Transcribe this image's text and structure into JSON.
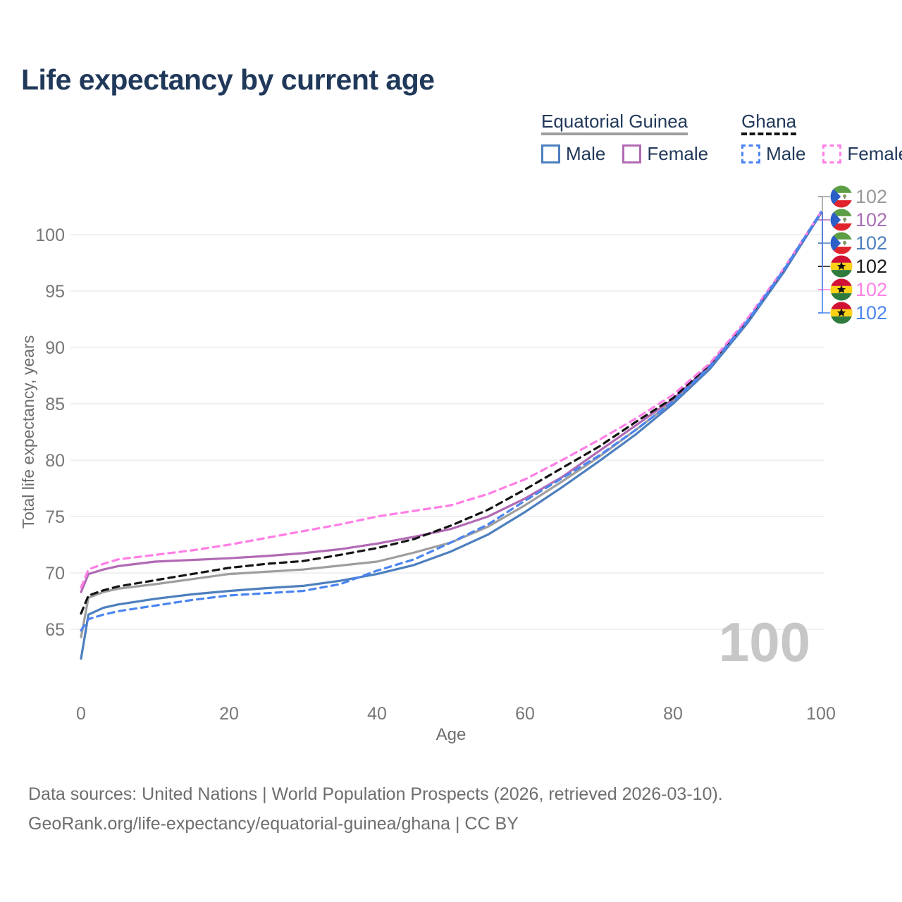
{
  "title": "Life expectancy by current age",
  "legend": {
    "groups": [
      {
        "name": "Equatorial Guinea",
        "series_id": "eq-total",
        "items": [
          {
            "label": "Male",
            "series_id": "eq-male"
          },
          {
            "label": "Female",
            "series_id": "eq-female"
          }
        ]
      },
      {
        "name": "Ghana",
        "series_id": "gh-total",
        "items": [
          {
            "label": "Male",
            "series_id": "gh-male"
          },
          {
            "label": "Female",
            "series_id": "gh-female"
          }
        ]
      }
    ]
  },
  "footer": {
    "line1": "Data sources: United Nations | World Population Prospects (2026, retrieved 2026-03-10).",
    "line2": "GeoRank.org/life-expectancy/equatorial-guinea/ghana | CC BY"
  },
  "chart_data": {
    "type": "line",
    "title": "Life expectancy by current age",
    "xlabel": "Age",
    "ylabel": "Total life expectancy, years",
    "x_ticks": [
      0,
      20,
      40,
      60,
      80,
      100
    ],
    "y_ticks": [
      65,
      70,
      75,
      80,
      85,
      90,
      95,
      100
    ],
    "xlim": [
      0,
      100
    ],
    "ylim": [
      62,
      103
    ],
    "grid": "horizontal-only",
    "legend_position": "top-right",
    "watermark": "100",
    "x": [
      0,
      1,
      3,
      5,
      10,
      15,
      20,
      25,
      30,
      35,
      40,
      45,
      50,
      55,
      60,
      65,
      70,
      75,
      80,
      85,
      90,
      95,
      100
    ],
    "series": [
      {
        "id": "eq-total",
        "name": "Equatorial Guinea",
        "sex": "Total",
        "color": "#9e9e9e",
        "dash": "solid",
        "flag": "equatorial-guinea",
        "end_label": "102",
        "label_color": "#999999",
        "end_rank": 0,
        "values": [
          64.3,
          67.8,
          68.3,
          68.6,
          69.0,
          69.45,
          69.9,
          70.1,
          70.3,
          70.65,
          71.0,
          71.8,
          72.7,
          74.1,
          76.0,
          78.1,
          80.3,
          82.7,
          85.2,
          88.25,
          92.2,
          96.75,
          101.9
        ]
      },
      {
        "id": "eq-female",
        "name": "Equatorial Guinea",
        "sex": "Female",
        "color": "#b16ab4",
        "dash": "solid",
        "flag": "equatorial-guinea",
        "end_label": "102",
        "label_color": "#a86eb5",
        "end_rank": 1,
        "values": [
          68.3,
          69.9,
          70.3,
          70.6,
          71.0,
          71.15,
          71.3,
          71.5,
          71.75,
          72.1,
          72.6,
          73.2,
          73.9,
          75.0,
          76.6,
          78.5,
          80.8,
          83.1,
          85.4,
          88.4,
          92.3,
          96.8,
          101.9
        ]
      },
      {
        "id": "eq-male",
        "name": "Equatorial Guinea",
        "sex": "Male",
        "color": "#4d7fbe",
        "dash": "solid",
        "flag": "equatorial-guinea",
        "end_label": "102",
        "label_color": "#4d7fbe",
        "end_rank": 2,
        "values": [
          62.4,
          66.3,
          66.9,
          67.2,
          67.7,
          68.1,
          68.4,
          68.65,
          68.85,
          69.3,
          69.9,
          70.7,
          71.9,
          73.4,
          75.4,
          77.6,
          79.9,
          82.3,
          85.0,
          88.1,
          92.1,
          96.7,
          101.9
        ]
      },
      {
        "id": "gh-total",
        "name": "Ghana",
        "sex": "Total",
        "color": "#141414",
        "dash": "dashed",
        "flag": "ghana",
        "end_label": "102",
        "label_color": "#1a1a1a",
        "end_rank": 3,
        "values": [
          66.4,
          68.0,
          68.45,
          68.8,
          69.35,
          69.9,
          70.45,
          70.8,
          71.05,
          71.6,
          72.2,
          73.0,
          74.2,
          75.6,
          77.4,
          79.3,
          81.2,
          83.4,
          85.5,
          88.5,
          92.4,
          96.95,
          102.0
        ]
      },
      {
        "id": "gh-female",
        "name": "Ghana",
        "sex": "Female",
        "color": "#ff7ee6",
        "dash": "dashed",
        "flag": "ghana",
        "end_label": "102",
        "label_color": "#ff80e5",
        "end_rank": 4,
        "values": [
          68.7,
          70.3,
          70.8,
          71.2,
          71.6,
          72.0,
          72.5,
          73.1,
          73.7,
          74.3,
          75.0,
          75.5,
          76.0,
          77.0,
          78.3,
          80.0,
          81.8,
          83.7,
          85.8,
          88.6,
          92.5,
          97.0,
          102.0
        ]
      },
      {
        "id": "gh-male",
        "name": "Ghana",
        "sex": "Male",
        "color": "#4b85f0",
        "dash": "dashed",
        "flag": "ghana",
        "end_label": "102",
        "label_color": "#4c86f0",
        "end_rank": 5,
        "values": [
          64.9,
          65.9,
          66.3,
          66.6,
          67.1,
          67.6,
          68.0,
          68.2,
          68.4,
          69.0,
          70.2,
          71.2,
          72.7,
          74.3,
          76.4,
          78.4,
          80.4,
          82.7,
          85.2,
          88.3,
          92.3,
          96.9,
          102.0
        ]
      }
    ]
  }
}
